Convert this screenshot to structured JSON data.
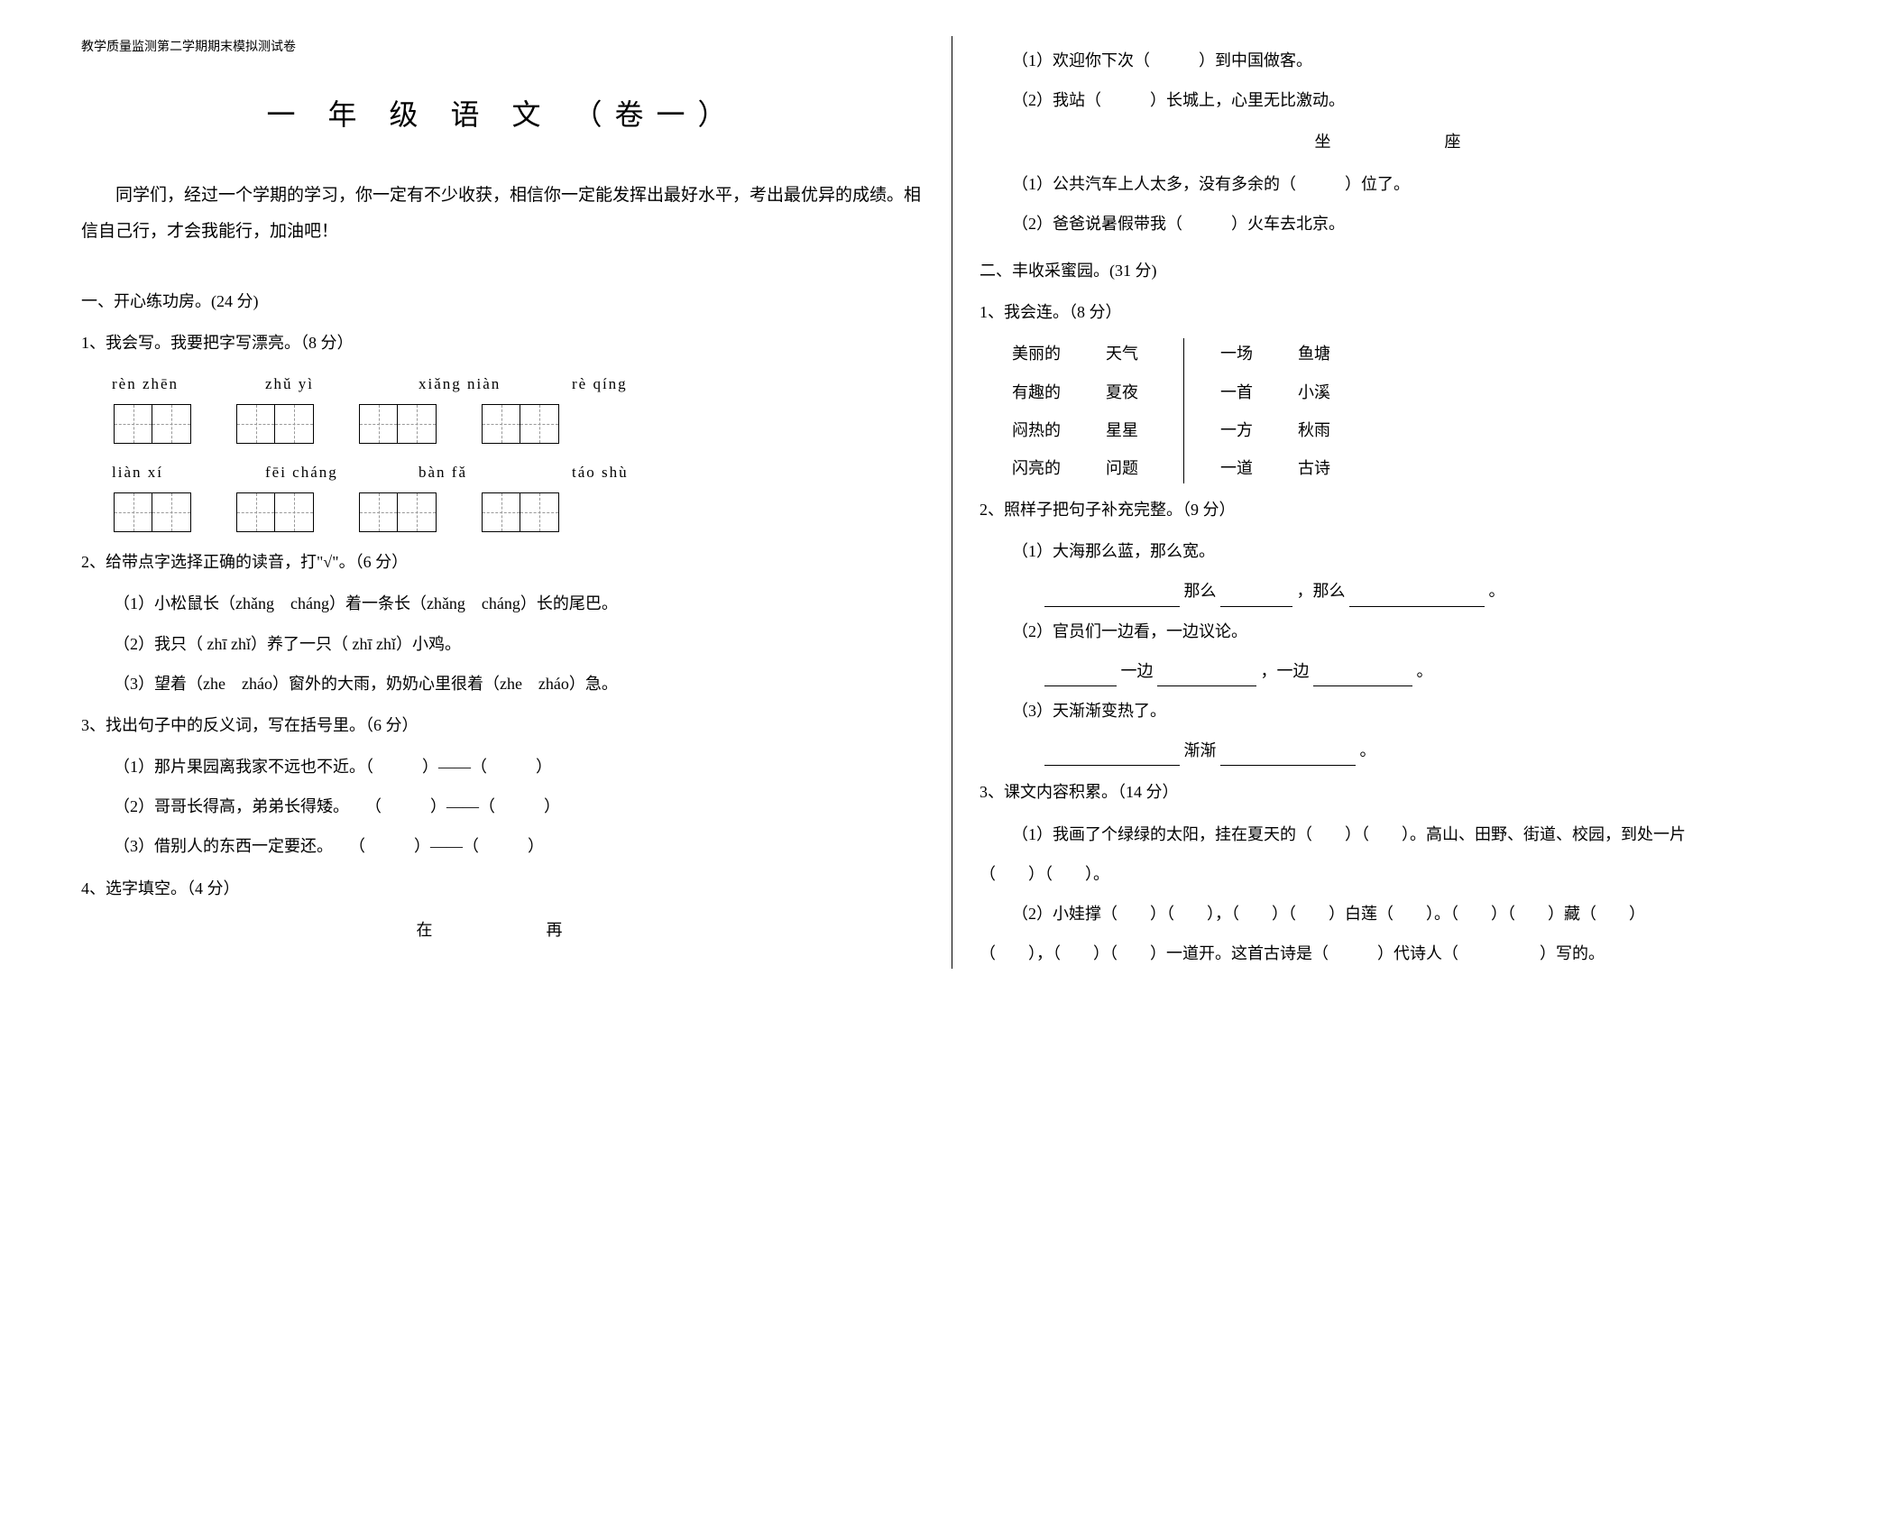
{
  "header": "教学质量监测第二学期期末模拟测试卷",
  "title": "一 年 级 语 文 （卷一）",
  "intro": "同学们，经过一个学期的学习，你一定有不少收获，相信你一定能发挥出最好水平，考出最优异的成绩。相信自己行，才会我能行，加油吧！",
  "section1": {
    "title": "一、开心练功房。(24 分)",
    "q1": {
      "title": "1、我会写。我要把字写漂亮。（8 分）",
      "pinyin_row1": [
        "rèn zhēn",
        "zhǔ yì",
        "xiǎng niàn",
        "rè qíng"
      ],
      "pinyin_row2": [
        "liàn xí",
        "fēi cháng",
        "bàn fǎ",
        "táo shù"
      ]
    },
    "q2": {
      "title": "2、给带点字选择正确的读音，打\"√\"。（6 分）",
      "items": [
        "（1）小松鼠长（zhǎng　cháng）着一条长（zhǎng　cháng）长的尾巴。",
        "（2）我只（ zhī zhǐ）养了一只（ zhī zhǐ）小鸡。",
        "（3）望着（zhe　zháo）窗外的大雨，奶奶心里很着（zhe　zháo）急。"
      ]
    },
    "q3": {
      "title": "3、找出句子中的反义词，写在括号里。（6 分）",
      "items": [
        "（1）那片果园离我家不远也不近。（　　　）——（　　　）",
        "（2）哥哥长得高，弟弟长得矮。　　（　　　）——（　　　）",
        "（3）借别人的东西一定要还。　　（　　　）——（　　　）"
      ]
    },
    "q4": {
      "title": "4、选字填空。（4 分）",
      "pair1_chars": "在　　再",
      "pair1_items": [
        "（1）欢迎你下次（　　　）到中国做客。",
        "（2）我站（　　　）长城上，心里无比激动。"
      ],
      "pair2_chars": "坐　　座",
      "pair2_items": [
        "（1）公共汽车上人太多，没有多余的（　　　）位了。",
        "（2）爸爸说暑假带我（　　　）火车去北京。"
      ]
    }
  },
  "section2": {
    "title": "二、丰收采蜜园。(31 分)",
    "q1": {
      "title": "1、我会连。（8 分）",
      "left_adj": [
        "美丽的",
        "有趣的",
        "闷热的",
        "闪亮的"
      ],
      "left_noun": [
        "天气",
        "夏夜",
        "星星",
        "问题"
      ],
      "right_meas": [
        "一场",
        "一首",
        "一方",
        "一道"
      ],
      "right_noun": [
        "鱼塘",
        "小溪",
        "秋雨",
        "古诗"
      ]
    },
    "q2": {
      "title": "2、照样子把句子补充完整。（9 分）",
      "item1_label": "（1）大海那么蓝，那么宽。",
      "item1_mid1": "那么",
      "item1_mid2": "，那么",
      "item1_end": "。",
      "item2_label": "（2）官员们一边看，一边议论。",
      "item2_mid1": "一边",
      "item2_mid2": "，一边",
      "item2_end": "。",
      "item3_label": "（3）天渐渐变热了。",
      "item3_mid": "渐渐",
      "item3_end": "。"
    },
    "q3": {
      "title": "3、课文内容积累。（14 分）",
      "item1": "（1）我画了个绿绿的太阳，挂在夏天的（　　）（　　）。高山、田野、街道、校园，到处一片",
      "item1_tail": "（　　）（　　）。",
      "item2": "（2）小娃撑（　　）（　　），（　　）（　　）白莲（　　）。（　　）（　　）藏（　　）",
      "item2_tail": "（　　），（　　）（　　）一道开。这首古诗是（　　　）代诗人（　　　　　）写的。"
    }
  }
}
